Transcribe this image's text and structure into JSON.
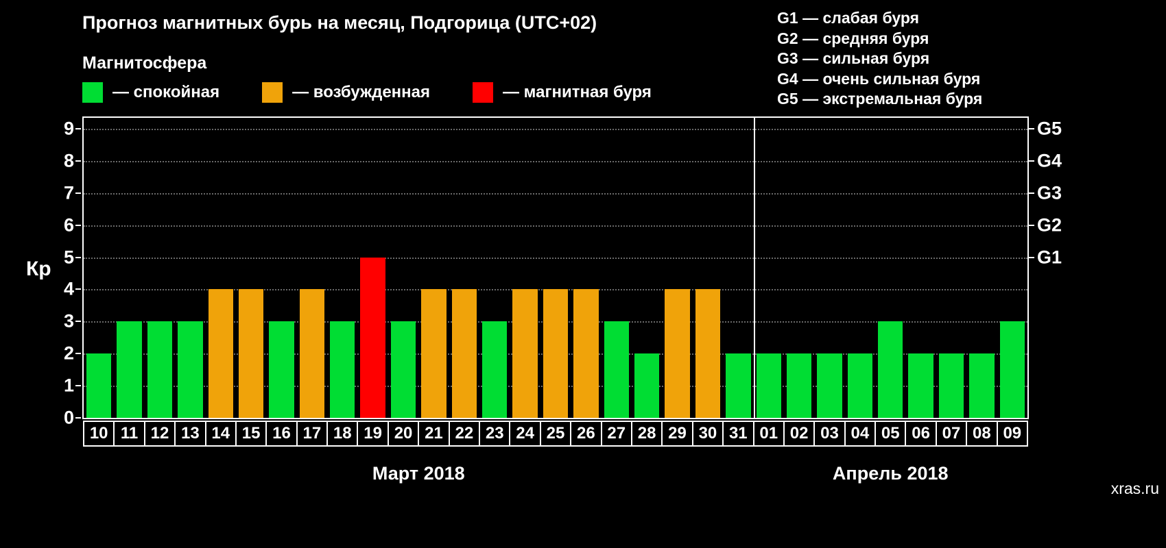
{
  "title": "Прогноз магнитных бурь на месяц, Подгорица (UTC+02)",
  "subtitle": "Магнитосфера",
  "legend": {
    "items": [
      {
        "key": "quiet",
        "label": "— спокойная",
        "color": "#00dd33"
      },
      {
        "key": "excited",
        "label": "— возбужденная",
        "color": "#f0a30a"
      },
      {
        "key": "storm",
        "label": "— магнитная буря",
        "color": "#ff0000"
      }
    ]
  },
  "g_scale_legend": {
    "items": [
      "G1 — слабая буря",
      "G2 — средняя буря",
      "G3 — сильная буря",
      "G4 — очень сильная буря",
      "G5 — экстремальная буря"
    ]
  },
  "watermark": "xras.ru",
  "chart_data": {
    "type": "bar",
    "title": "Прогноз магнитных бурь на месяц, Подгорица (UTC+02)",
    "ylabel": "Кр",
    "ylim": [
      0,
      9
    ],
    "yticks": [
      0,
      1,
      2,
      3,
      4,
      5,
      6,
      7,
      8,
      9
    ],
    "grid": "dotted horizontal",
    "legend_position": "top",
    "right_axis": [
      {
        "label": "G1",
        "value": 5
      },
      {
        "label": "G2",
        "value": 6
      },
      {
        "label": "G3",
        "value": 7
      },
      {
        "label": "G4",
        "value": 8
      },
      {
        "label": "G5",
        "value": 9
      }
    ],
    "categories": [
      "10",
      "11",
      "12",
      "13",
      "14",
      "15",
      "16",
      "17",
      "18",
      "19",
      "20",
      "21",
      "22",
      "23",
      "24",
      "25",
      "26",
      "27",
      "28",
      "29",
      "30",
      "31",
      "01",
      "02",
      "03",
      "04",
      "05",
      "06",
      "07",
      "08",
      "09"
    ],
    "values": [
      2,
      3,
      3,
      3,
      4,
      4,
      3,
      4,
      3,
      5,
      3,
      4,
      4,
      3,
      4,
      4,
      4,
      3,
      2,
      4,
      4,
      2,
      2,
      2,
      2,
      2,
      3,
      2,
      2,
      2,
      3
    ],
    "bar_color_rule": {
      "kp_le_3": "#00dd33",
      "kp_4": "#f0a30a",
      "kp_ge_5": "#ff0000"
    },
    "months": [
      {
        "label": "Март 2018",
        "start_index": 0,
        "count": 22
      },
      {
        "label": "Апрель 2018",
        "start_index": 22,
        "count": 9
      }
    ]
  }
}
